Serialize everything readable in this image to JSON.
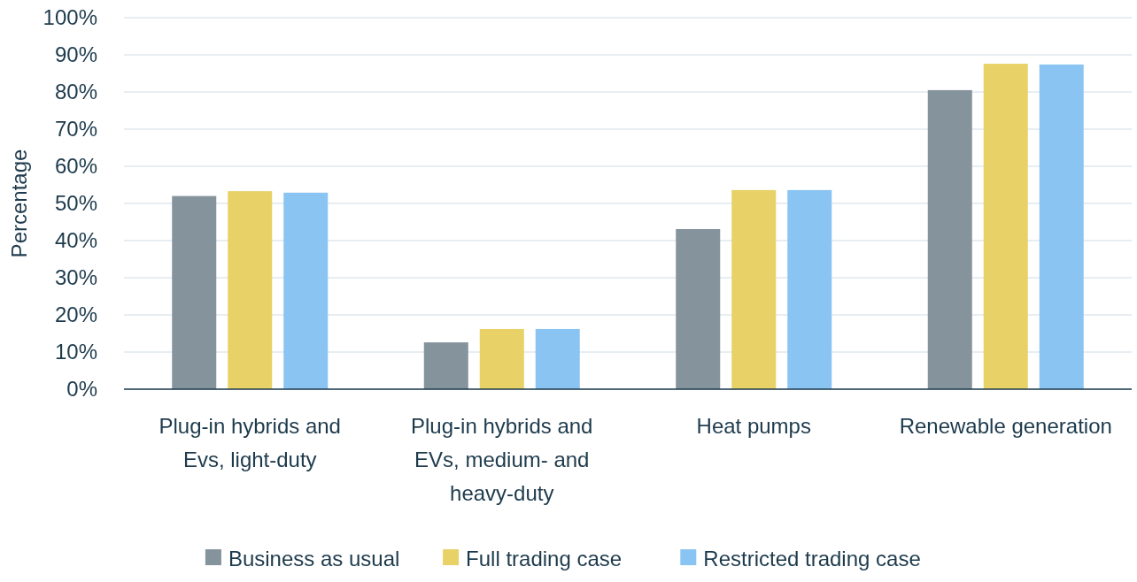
{
  "chart_data": {
    "type": "bar",
    "ylabel": "Percentage",
    "categories": [
      "Plug-in hybrids and Evs, light-duty",
      "Plug-in hybrids and EVs, medium- and heavy-duty",
      "Heat pumps",
      "Renewable generation"
    ],
    "series": [
      {
        "name": "Business as usual",
        "color": "#85939c",
        "values": [
          52,
          12.6,
          43.1,
          80.5
        ]
      },
      {
        "name": "Full trading case",
        "color": "#e8d166",
        "values": [
          53.3,
          16.2,
          53.6,
          87.6
        ]
      },
      {
        "name": "Restricted trading case",
        "color": "#8ac4f2",
        "values": [
          52.9,
          16.2,
          53.6,
          87.4
        ]
      }
    ],
    "ylim": [
      0,
      100
    ],
    "yticks": [
      {
        "value": 0,
        "label": "0%"
      },
      {
        "value": 10,
        "label": "10%"
      },
      {
        "value": 20,
        "label": "20%"
      },
      {
        "value": 30,
        "label": "30%"
      },
      {
        "value": 40,
        "label": "40%"
      },
      {
        "value": 50,
        "label": "50%"
      },
      {
        "value": 60,
        "label": "60%"
      },
      {
        "value": 70,
        "label": "70%"
      },
      {
        "value": 80,
        "label": "80%"
      },
      {
        "value": 90,
        "label": "90%"
      },
      {
        "value": 100,
        "label": "100%"
      }
    ],
    "grid": "y",
    "legend": "bottom"
  }
}
